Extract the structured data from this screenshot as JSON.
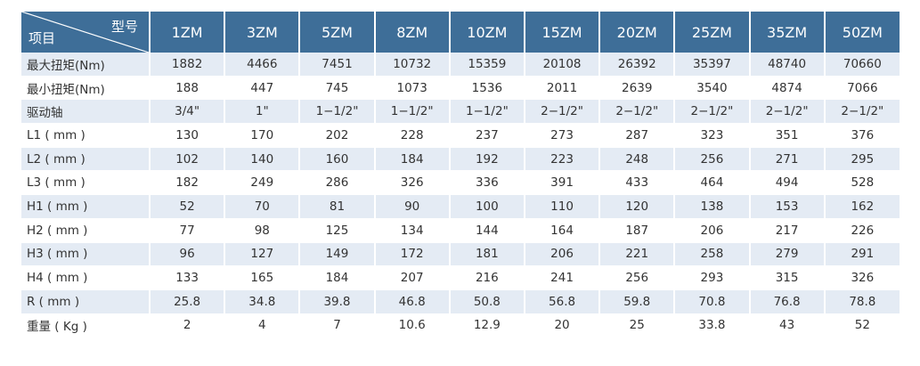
{
  "header": {
    "corner_top": "型号",
    "corner_bottom": "项目",
    "models": [
      "1ZM",
      "3ZM",
      "5ZM",
      "8ZM",
      "10ZM",
      "15ZM",
      "20ZM",
      "25ZM",
      "35ZM",
      "50ZM"
    ]
  },
  "rows": [
    {
      "label": "最大扭矩(Nm)",
      "values": [
        "1882",
        "4466",
        "7451",
        "10732",
        "15359",
        "20108",
        "26392",
        "35397",
        "48740",
        "70660"
      ]
    },
    {
      "label": "最小扭矩(Nm)",
      "values": [
        "188",
        "447",
        "745",
        "1073",
        "1536",
        "2011",
        "2639",
        "3540",
        "4874",
        "7066"
      ]
    },
    {
      "label": "驱动轴",
      "values": [
        "3/4\"",
        "1\"",
        "1−1/2\"",
        "1−1/2\"",
        "1−1/2\"",
        "2−1/2\"",
        "2−1/2\"",
        "2−1/2\"",
        "2−1/2\"",
        "2−1/2\""
      ]
    },
    {
      "label": "L1 ( mm )",
      "values": [
        "130",
        "170",
        "202",
        "228",
        "237",
        "273",
        "287",
        "323",
        "351",
        "376"
      ]
    },
    {
      "label": "L2 ( mm )",
      "values": [
        "102",
        "140",
        "160",
        "184",
        "192",
        "223",
        "248",
        "256",
        "271",
        "295"
      ]
    },
    {
      "label": "L3 ( mm )",
      "values": [
        "182",
        "249",
        "286",
        "326",
        "336",
        "391",
        "433",
        "464",
        "494",
        "528"
      ]
    },
    {
      "label": "H1 ( mm )",
      "values": [
        "52",
        "70",
        "81",
        "90",
        "100",
        "110",
        "120",
        "138",
        "153",
        "162"
      ]
    },
    {
      "label": "H2 ( mm )",
      "values": [
        "77",
        "98",
        "125",
        "134",
        "144",
        "164",
        "187",
        "206",
        "217",
        "226"
      ]
    },
    {
      "label": "H3 ( mm )",
      "values": [
        "96",
        "127",
        "149",
        "172",
        "181",
        "206",
        "221",
        "258",
        "279",
        "291"
      ]
    },
    {
      "label": "H4 ( mm )",
      "values": [
        "133",
        "165",
        "184",
        "207",
        "216",
        "241",
        "256",
        "293",
        "315",
        "326"
      ]
    },
    {
      "label": "R ( mm )",
      "values": [
        "25.8",
        "34.8",
        "39.8",
        "46.8",
        "50.8",
        "56.8",
        "59.8",
        "70.8",
        "76.8",
        "78.8"
      ]
    },
    {
      "label": "重量 ( Kg )",
      "values": [
        "2",
        "4",
        "7",
        "10.6",
        "12.9",
        "20",
        "25",
        "33.8",
        "43",
        "52"
      ]
    }
  ],
  "colors": {
    "header_bg": "#3e6e98",
    "stripe_bg": "#e4ebf4",
    "text": "#333333"
  }
}
